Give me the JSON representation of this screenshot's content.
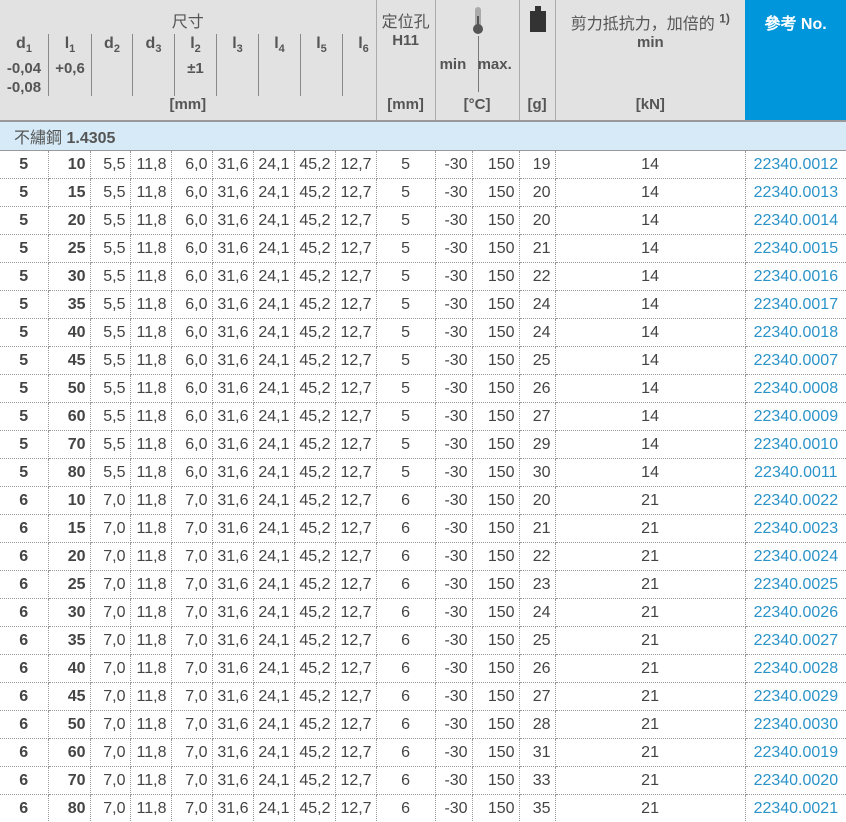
{
  "header": {
    "dims_title": "尺寸",
    "cols": [
      {
        "name": "d",
        "sub": "1",
        "tol": "-0,04\n-0,08"
      },
      {
        "name": "l",
        "sub": "1",
        "tol": "+0,6"
      },
      {
        "name": "d",
        "sub": "2",
        "tol": ""
      },
      {
        "name": "d",
        "sub": "3",
        "tol": ""
      },
      {
        "name": "l",
        "sub": "2",
        "tol": "±1"
      },
      {
        "name": "l",
        "sub": "3",
        "tol": ""
      },
      {
        "name": "l",
        "sub": "4",
        "tol": ""
      },
      {
        "name": "l",
        "sub": "5",
        "tol": ""
      },
      {
        "name": "l",
        "sub": "6",
        "tol": ""
      }
    ],
    "dims_unit": "[mm]",
    "hole_title": "定位孔",
    "hole_tol": "H11",
    "hole_unit": "[mm]",
    "temp_min": "min",
    "temp_max": "max.",
    "temp_unit": "[°C]",
    "weight_unit": "[g]",
    "shear_title": "剪力抵抗力，加倍的",
    "shear_note": "1)",
    "shear_min": "min",
    "shear_unit": "[kN]",
    "ref_title": "參考 No."
  },
  "section": {
    "material_cn": "不繡鋼",
    "material_no": "1.4305"
  },
  "colors": {
    "ref_header": "#0096db",
    "link": "#2a93c9",
    "section": "#d6ebf7",
    "header": "#e2e2e2"
  },
  "rows": [
    [
      "5",
      "10",
      "5,5",
      "11,8",
      "6,0",
      "31,6",
      "24,1",
      "45,2",
      "12,7",
      "5",
      "-30",
      "150",
      "19",
      "14",
      "22340.0012"
    ],
    [
      "5",
      "15",
      "5,5",
      "11,8",
      "6,0",
      "31,6",
      "24,1",
      "45,2",
      "12,7",
      "5",
      "-30",
      "150",
      "20",
      "14",
      "22340.0013"
    ],
    [
      "5",
      "20",
      "5,5",
      "11,8",
      "6,0",
      "31,6",
      "24,1",
      "45,2",
      "12,7",
      "5",
      "-30",
      "150",
      "20",
      "14",
      "22340.0014"
    ],
    [
      "5",
      "25",
      "5,5",
      "11,8",
      "6,0",
      "31,6",
      "24,1",
      "45,2",
      "12,7",
      "5",
      "-30",
      "150",
      "21",
      "14",
      "22340.0015"
    ],
    [
      "5",
      "30",
      "5,5",
      "11,8",
      "6,0",
      "31,6",
      "24,1",
      "45,2",
      "12,7",
      "5",
      "-30",
      "150",
      "22",
      "14",
      "22340.0016"
    ],
    [
      "5",
      "35",
      "5,5",
      "11,8",
      "6,0",
      "31,6",
      "24,1",
      "45,2",
      "12,7",
      "5",
      "-30",
      "150",
      "24",
      "14",
      "22340.0017"
    ],
    [
      "5",
      "40",
      "5,5",
      "11,8",
      "6,0",
      "31,6",
      "24,1",
      "45,2",
      "12,7",
      "5",
      "-30",
      "150",
      "24",
      "14",
      "22340.0018"
    ],
    [
      "5",
      "45",
      "5,5",
      "11,8",
      "6,0",
      "31,6",
      "24,1",
      "45,2",
      "12,7",
      "5",
      "-30",
      "150",
      "25",
      "14",
      "22340.0007"
    ],
    [
      "5",
      "50",
      "5,5",
      "11,8",
      "6,0",
      "31,6",
      "24,1",
      "45,2",
      "12,7",
      "5",
      "-30",
      "150",
      "26",
      "14",
      "22340.0008"
    ],
    [
      "5",
      "60",
      "5,5",
      "11,8",
      "6,0",
      "31,6",
      "24,1",
      "45,2",
      "12,7",
      "5",
      "-30",
      "150",
      "27",
      "14",
      "22340.0009"
    ],
    [
      "5",
      "70",
      "5,5",
      "11,8",
      "6,0",
      "31,6",
      "24,1",
      "45,2",
      "12,7",
      "5",
      "-30",
      "150",
      "29",
      "14",
      "22340.0010"
    ],
    [
      "5",
      "80",
      "5,5",
      "11,8",
      "6,0",
      "31,6",
      "24,1",
      "45,2",
      "12,7",
      "5",
      "-30",
      "150",
      "30",
      "14",
      "22340.0011"
    ],
    [
      "6",
      "10",
      "7,0",
      "11,8",
      "7,0",
      "31,6",
      "24,1",
      "45,2",
      "12,7",
      "6",
      "-30",
      "150",
      "20",
      "21",
      "22340.0022"
    ],
    [
      "6",
      "15",
      "7,0",
      "11,8",
      "7,0",
      "31,6",
      "24,1",
      "45,2",
      "12,7",
      "6",
      "-30",
      "150",
      "21",
      "21",
      "22340.0023"
    ],
    [
      "6",
      "20",
      "7,0",
      "11,8",
      "7,0",
      "31,6",
      "24,1",
      "45,2",
      "12,7",
      "6",
      "-30",
      "150",
      "22",
      "21",
      "22340.0024"
    ],
    [
      "6",
      "25",
      "7,0",
      "11,8",
      "7,0",
      "31,6",
      "24,1",
      "45,2",
      "12,7",
      "6",
      "-30",
      "150",
      "23",
      "21",
      "22340.0025"
    ],
    [
      "6",
      "30",
      "7,0",
      "11,8",
      "7,0",
      "31,6",
      "24,1",
      "45,2",
      "12,7",
      "6",
      "-30",
      "150",
      "24",
      "21",
      "22340.0026"
    ],
    [
      "6",
      "35",
      "7,0",
      "11,8",
      "7,0",
      "31,6",
      "24,1",
      "45,2",
      "12,7",
      "6",
      "-30",
      "150",
      "25",
      "21",
      "22340.0027"
    ],
    [
      "6",
      "40",
      "7,0",
      "11,8",
      "7,0",
      "31,6",
      "24,1",
      "45,2",
      "12,7",
      "6",
      "-30",
      "150",
      "26",
      "21",
      "22340.0028"
    ],
    [
      "6",
      "45",
      "7,0",
      "11,8",
      "7,0",
      "31,6",
      "24,1",
      "45,2",
      "12,7",
      "6",
      "-30",
      "150",
      "27",
      "21",
      "22340.0029"
    ],
    [
      "6",
      "50",
      "7,0",
      "11,8",
      "7,0",
      "31,6",
      "24,1",
      "45,2",
      "12,7",
      "6",
      "-30",
      "150",
      "28",
      "21",
      "22340.0030"
    ],
    [
      "6",
      "60",
      "7,0",
      "11,8",
      "7,0",
      "31,6",
      "24,1",
      "45,2",
      "12,7",
      "6",
      "-30",
      "150",
      "31",
      "21",
      "22340.0019"
    ],
    [
      "6",
      "70",
      "7,0",
      "11,8",
      "7,0",
      "31,6",
      "24,1",
      "45,2",
      "12,7",
      "6",
      "-30",
      "150",
      "33",
      "21",
      "22340.0020"
    ],
    [
      "6",
      "80",
      "7,0",
      "11,8",
      "7,0",
      "31,6",
      "24,1",
      "45,2",
      "12,7",
      "6",
      "-30",
      "150",
      "35",
      "21",
      "22340.0021"
    ]
  ]
}
